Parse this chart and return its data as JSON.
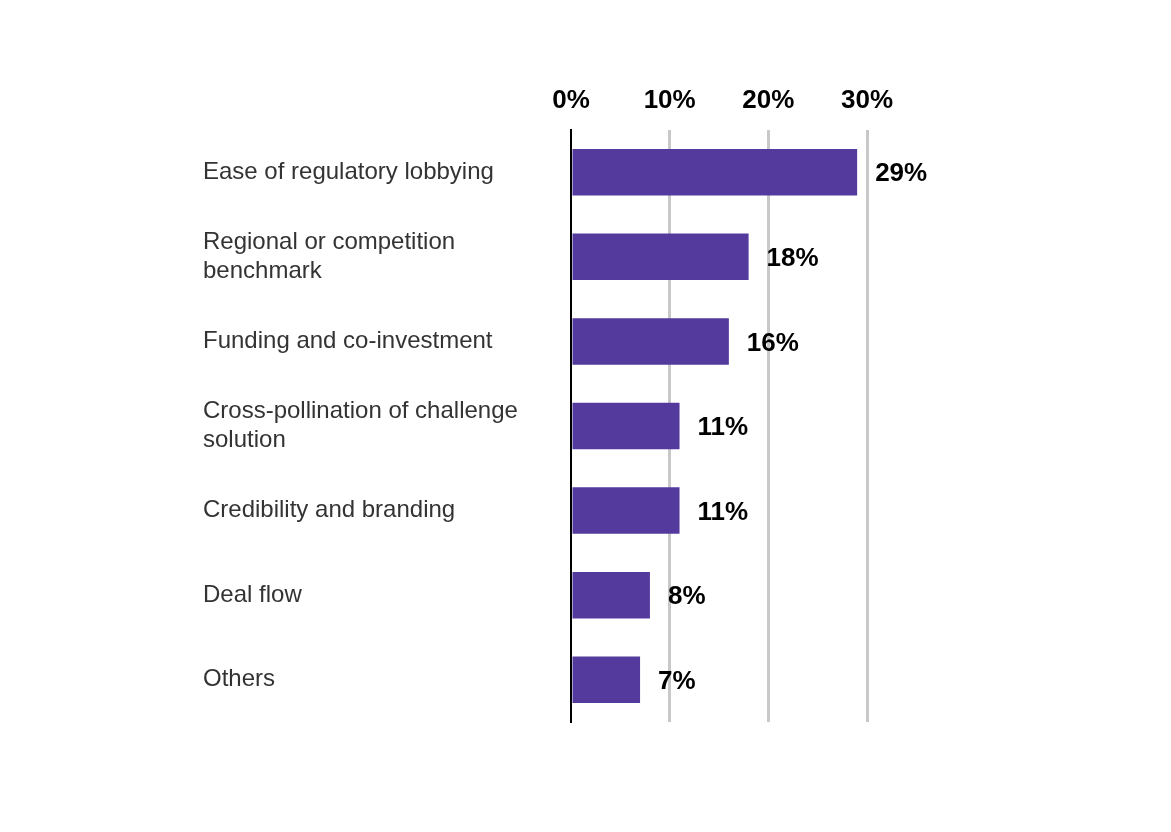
{
  "chart_data": {
    "type": "bar",
    "orientation": "horizontal",
    "categories": [
      "Ease of regulatory lobbying",
      "Regional or competition benchmark",
      "Funding and co-investment",
      "Cross-pollination of challenge solution",
      "Credibility and branding",
      "Deal flow",
      "Others"
    ],
    "values": [
      29,
      18,
      16,
      11,
      11,
      8,
      7
    ],
    "value_labels": [
      "29%",
      "18%",
      "16%",
      "11%",
      "11%",
      "8%",
      "7%"
    ],
    "color": "#553a9e",
    "xlim": [
      0,
      30
    ],
    "xticks": [
      {
        "value": 0,
        "label": "0%"
      },
      {
        "value": 10,
        "label": "10%"
      },
      {
        "value": 20,
        "label": "20%"
      },
      {
        "value": 30,
        "label": "30%"
      }
    ],
    "grid": "x"
  }
}
